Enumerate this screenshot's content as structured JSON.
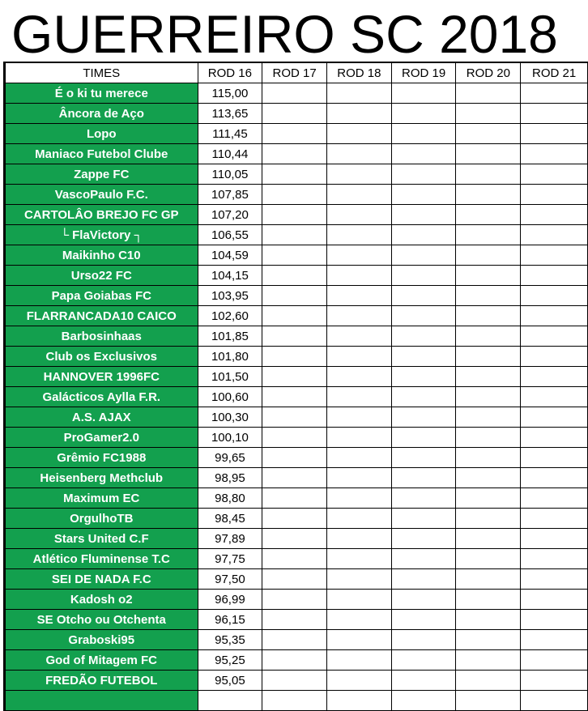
{
  "title": "GUERREIRO SC 2018",
  "columns": [
    "TIMES",
    "ROD 16",
    "ROD 17",
    "ROD 18",
    "ROD 19",
    "ROD 20",
    "ROD 21"
  ],
  "colors": {
    "team_cell": "#13a04e",
    "team_text": "#ffffff"
  },
  "rows": [
    [
      "É o ki tu merece",
      "115,00"
    ],
    [
      "Âncora de Aço",
      "113,65"
    ],
    [
      "Lopo",
      "111,45"
    ],
    [
      "Maniaco Futebol Clube",
      "110,44"
    ],
    [
      "Zappe FC",
      "110,05"
    ],
    [
      "VascoPaulo F.C.",
      "107,85"
    ],
    [
      "CARTOLÂO BREJO FC GP",
      "107,20"
    ],
    [
      "└ FlaVictory ┐",
      "106,55"
    ],
    [
      "Maikinho C10",
      "104,59"
    ],
    [
      "Urso22 FC",
      "104,15"
    ],
    [
      "Papa Goiabas FC",
      "103,95"
    ],
    [
      "FLARRANCADA10 CAICO",
      "102,60"
    ],
    [
      "Barbosinhaas",
      "101,85"
    ],
    [
      "Club os Exclusivos",
      "101,80"
    ],
    [
      "HANNOVER 1996FC",
      "101,50"
    ],
    [
      "Galácticos Aylla F.R.",
      "100,60"
    ],
    [
      "A.S. AJAX",
      "100,30"
    ],
    [
      "ProGamer2.0",
      "100,10"
    ],
    [
      "Grêmio FC1988",
      "99,65"
    ],
    [
      "Heisenberg Methclub",
      "98,95"
    ],
    [
      "Maximum EC",
      "98,80"
    ],
    [
      "OrgulhoTB",
      "98,45"
    ],
    [
      "Stars United C.F",
      "97,89"
    ],
    [
      "Atlético Fluminense T.C",
      "97,75"
    ],
    [
      "SEI DE NADA F.C",
      "97,50"
    ],
    [
      "Kadosh o2",
      "96,99"
    ],
    [
      "SE Otcho ou Otchenta",
      "96,15"
    ],
    [
      "Graboski95",
      "95,35"
    ],
    [
      "God of Mitagem FC",
      "95,25"
    ],
    [
      "FREDÃO FUTEBOL",
      "95,05"
    ]
  ]
}
